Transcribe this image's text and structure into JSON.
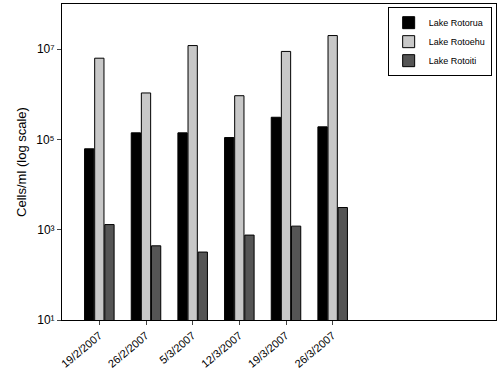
{
  "chart_data": {
    "type": "bar",
    "y_label": "Cells/ml (log scale)",
    "categories": [
      "19/2/2007",
      "26/2/2007",
      "5/3/2007",
      "12/3/2007",
      "19/3/2007",
      "26/3/2007"
    ],
    "series": [
      {
        "name": "Lake Rotorua",
        "color": "#000000",
        "values": [
          62000,
          140000,
          140000,
          110000,
          310000,
          190000
        ]
      },
      {
        "name": "Lake Rotoehu",
        "color": "#c8c8c8",
        "values": [
          6300000,
          1070000,
          12000000,
          930000,
          8900000,
          20000000
        ]
      },
      {
        "name": "Lake Rotoiti",
        "color": "#555555",
        "values": [
          1300,
          440,
          320,
          760,
          1200,
          3100
        ]
      }
    ],
    "log": "y",
    "ylim": [
      10,
      100000000
    ],
    "yticks": [
      {
        "value": 10,
        "label": "10¹"
      },
      {
        "value": 1000,
        "label": "10³"
      },
      {
        "value": 100000,
        "label": "10⁵"
      },
      {
        "value": 10000000,
        "label": "10⁷"
      }
    ],
    "grid": false,
    "legend": "upper right"
  }
}
